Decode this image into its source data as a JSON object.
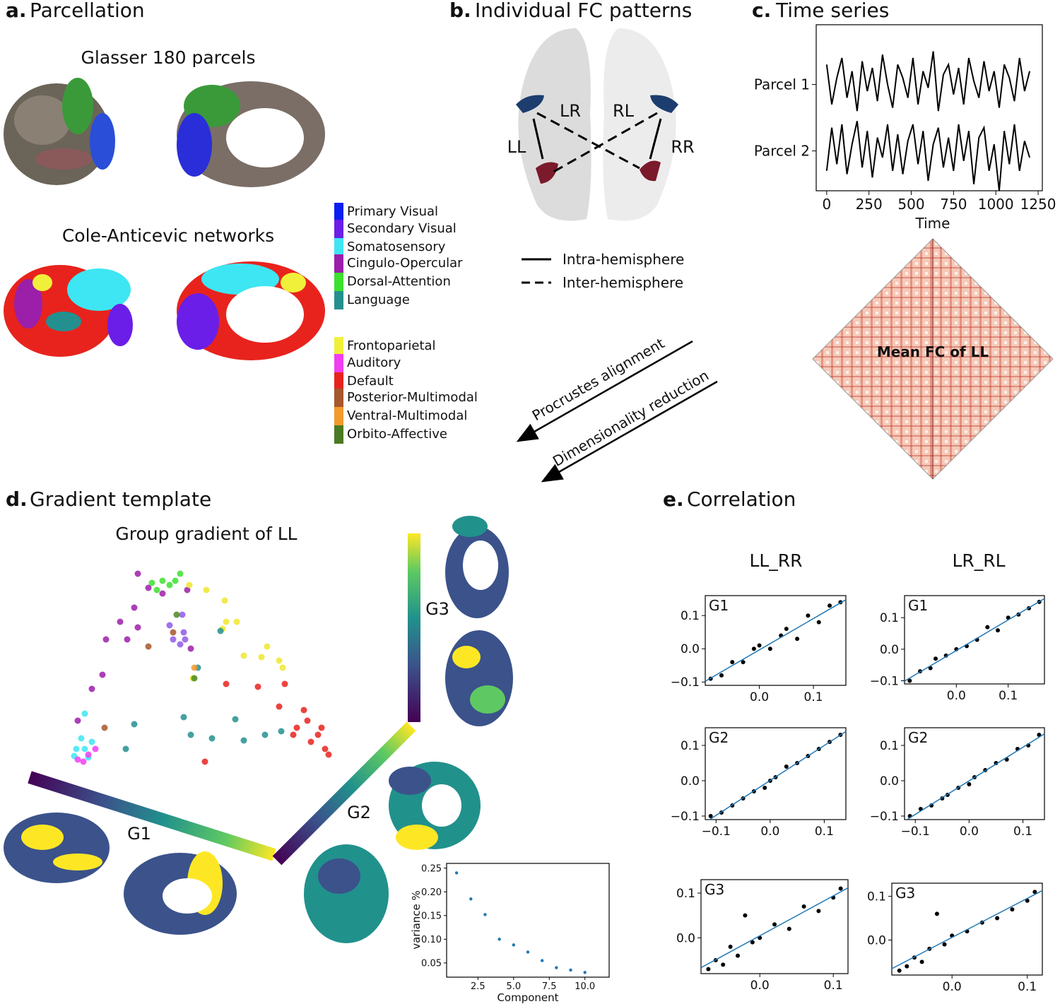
{
  "panel_a": {
    "label": "a.",
    "title": "Parcellation",
    "subtitle_1": "Glasser 180 parcels",
    "subtitle_2": "Cole-Anticevic networks",
    "legend": [
      {
        "name": "Primary Visual",
        "color": "#0a1ef0"
      },
      {
        "name": "Secondary Visual",
        "color": "#6a1ee8"
      },
      {
        "name": "Somatosensory",
        "color": "#3de6f2"
      },
      {
        "name": "Cingulo-Opercular",
        "color": "#9b1fa9"
      },
      {
        "name": "Dorsal-Attention",
        "color": "#3ce02e"
      },
      {
        "name": "Language",
        "color": "#23908f"
      },
      {
        "name": "Frontoparietal",
        "color": "#f0f03a"
      },
      {
        "name": "Auditory",
        "color": "#f03ef0"
      },
      {
        "name": "Default",
        "color": "#e8231d"
      },
      {
        "name": "Posterior-Multimodal",
        "color": "#a6572b"
      },
      {
        "name": "Ventral-Multimodal",
        "color": "#f39a2c"
      },
      {
        "name": "Orbito-Affective",
        "color": "#4a7a22"
      }
    ]
  },
  "panel_b": {
    "label": "b.",
    "title": "Individual FC patterns",
    "pairs": [
      "LR",
      "RL",
      "LL",
      "RR"
    ],
    "legend": [
      "Intra-hemisphere",
      "Inter-hemisphere"
    ]
  },
  "panel_c": {
    "label": "c.",
    "title": "Time series",
    "chart_data": {
      "type": "line",
      "xlabel": "Time",
      "x": [
        0,
        30,
        60,
        90,
        120,
        150,
        180,
        210,
        240,
        270,
        300,
        330,
        360,
        390,
        420,
        450,
        480,
        510,
        540,
        570,
        600,
        630,
        660,
        690,
        720,
        750,
        780,
        810,
        840,
        870,
        900,
        930,
        960,
        990,
        1020,
        1050,
        1080,
        1110,
        1140,
        1170,
        1200
      ],
      "series": [
        {
          "color": "#000000",
          "values": [
            1.3,
            0.7,
            1.1,
            1.4,
            0.8,
            1.2,
            0.6,
            1.35,
            0.9,
            1.25,
            0.75,
            1.45,
            1.0,
            0.65,
            1.3,
            1.1,
            0.8,
            1.4,
            0.7,
            1.2,
            0.95,
            1.5,
            0.6,
            1.15,
            1.3,
            0.85,
            1.25,
            0.7,
            1.4,
            1.05,
            0.8,
            1.35,
            0.9,
            1.2,
            0.65,
            1.3,
            1.1,
            0.75,
            1.4,
            0.9,
            1.2
          ]
        },
        {
          "color": "#000000",
          "values": [
            -0.3,
            0.35,
            -0.2,
            0.4,
            -0.35,
            0.1,
            0.45,
            -0.25,
            0.3,
            -0.4,
            0.2,
            -0.1,
            0.4,
            -0.3,
            0.25,
            -0.35,
            0.15,
            0.4,
            -0.2,
            0.3,
            -0.45,
            0.1,
            0.35,
            -0.25,
            0.2,
            -0.3,
            0.4,
            -0.15,
            0.3,
            -0.5,
            0.2,
            0.35,
            -0.3,
            0.1,
            -0.6,
            0.3,
            -0.2,
            0.4,
            -0.3,
            0.15,
            -0.1
          ]
        }
      ],
      "xlim": [
        -62,
        1275
      ],
      "ylim": [
        -0.6,
        1.9
      ],
      "xticks": [
        0,
        250,
        500,
        750,
        1000,
        1250
      ],
      "yticks": [
        {
          "value": 1,
          "label": "Parcel 1"
        },
        {
          "value": 0,
          "label": "Parcel 2"
        }
      ]
    },
    "matrix_label": "Mean FC of LL"
  },
  "arrows": [
    "Procrustes alignment",
    "Dimensionality reduction"
  ],
  "panel_d": {
    "label": "d.",
    "title": "Gradient template",
    "subtitle": "Group gradient of LL",
    "axes": [
      "G1",
      "G2",
      "G3"
    ],
    "scatter": {
      "type": "scatter",
      "xlim": [
        0,
        400
      ],
      "ylim": [
        0,
        300
      ],
      "series": [
        {
          "color": "#3ce02e",
          "x": [
            125,
            140,
            150,
            165,
            158,
            132
          ],
          "values": [
            265,
            268,
            262,
            278,
            268,
            255
          ]
        },
        {
          "color": "#9b1fa9",
          "x": [
            105,
            120,
            140,
            100,
            80,
            90,
            60,
            55,
            40,
            20,
            105,
            175,
            180
          ],
          "values": [
            278,
            258,
            250,
            230,
            210,
            185,
            185,
            135,
            115,
            70,
            202,
            255,
            172
          ]
        },
        {
          "color": "#8f5ae8",
          "x": [
            168,
            170,
            165,
            155,
            150,
            172
          ],
          "values": [
            220,
            195,
            178,
            185,
            205,
            185
          ]
        },
        {
          "color": "#f0e62e",
          "x": [
            178,
            202,
            228,
            230,
            245,
            288,
            305,
            310,
            280,
            255,
            183,
            225
          ],
          "values": [
            262,
            255,
            240,
            210,
            210,
            175,
            155,
            145,
            160,
            162,
            130,
            200
          ]
        },
        {
          "color": "#23908f",
          "x": [
            222,
            190,
            180,
            210,
            255,
            285,
            308,
            100,
            88,
            170,
            243
          ],
          "values": [
            197,
            145,
            50,
            45,
            42,
            50,
            55,
            65,
            30,
            75,
            72
          ]
        },
        {
          "color": "#e8231d",
          "x": [
            230,
            275,
            313,
            305,
            340,
            330,
            350,
            370,
            375,
            360,
            325,
            200,
            345,
            365
          ],
          "values": [
            122,
            118,
            122,
            90,
            85,
            60,
            40,
            30,
            22,
            50,
            50,
            12,
            70,
            60
          ]
        },
        {
          "color": "#3de6f2",
          "x": [
            15,
            30,
            25,
            40,
            18,
            35,
            30
          ],
          "values": [
            20,
            30,
            45,
            40,
            30,
            18,
            80
          ]
        },
        {
          "color": "#f03ef0",
          "x": [
            20,
            35,
            45,
            28
          ],
          "values": [
            15,
            22,
            30,
            12
          ]
        },
        {
          "color": "#a6572b",
          "x": [
            120,
            58,
            155
          ],
          "values": [
            175,
            60,
            195
          ]
        },
        {
          "color": "#4a8a22",
          "x": [
            185,
            160
          ],
          "values": [
            130,
            220
          ]
        },
        {
          "color": "#f39a2c",
          "x": [
            185
          ],
          "values": [
            145
          ]
        }
      ]
    },
    "variance": {
      "type": "scatter",
      "xlabel": "Component",
      "ylabel": "variance %",
      "color": "#1f77b4",
      "x": [
        1,
        2,
        3,
        4,
        5,
        6,
        7,
        8,
        9,
        10
      ],
      "values": [
        0.24,
        0.185,
        0.152,
        0.1,
        0.088,
        0.073,
        0.055,
        0.04,
        0.035,
        0.03
      ],
      "xlim": [
        0.3,
        11.7
      ],
      "ylim": [
        0.02,
        0.26
      ],
      "xticks": [
        2.5,
        {
          "value": 5,
          "label": "5.0"
        },
        7.5,
        {
          "value": 10,
          "label": "10.0"
        }
      ],
      "yticks": [
        0.05,
        {
          "value": 0.1,
          "label": "0.10"
        },
        {
          "value": 0.15,
          "label": "0.15"
        },
        {
          "value": 0.2,
          "label": "0.20"
        },
        0.25
      ]
    }
  },
  "panel_e": {
    "label": "e.",
    "title": "Correlation",
    "columns": [
      "LL_RR",
      "LR_RL"
    ],
    "chart_data": [
      {
        "type": "scatter",
        "title": "G1",
        "xlim": [
          -0.1,
          0.16
        ],
        "ylim": [
          -0.11,
          0.16
        ],
        "xticks": [
          {
            "value": 0,
            "label": "0.0"
          },
          0.1
        ],
        "yticks": [
          {
            "value": -0.1,
            "label": "−0.1"
          },
          {
            "value": 0,
            "label": "0.0"
          },
          0.1
        ],
        "x": [
          -0.09,
          -0.07,
          -0.05,
          -0.03,
          -0.01,
          0.0,
          0.02,
          0.04,
          0.05,
          0.07,
          0.09,
          0.11,
          0.13,
          0.15
        ],
        "values": [
          -0.09,
          -0.08,
          -0.04,
          -0.04,
          0.0,
          0.01,
          0.0,
          0.04,
          0.06,
          0.03,
          0.1,
          0.08,
          0.13,
          0.14
        ]
      },
      {
        "type": "scatter",
        "title": "G1",
        "xlim": [
          -0.1,
          0.17
        ],
        "ylim": [
          -0.11,
          0.17
        ],
        "xticks": [
          {
            "value": 0,
            "label": "0.0"
          },
          0.1
        ],
        "yticks": [
          {
            "value": -0.1,
            "label": "−0.1"
          },
          {
            "value": 0,
            "label": "0.0"
          },
          0.1
        ],
        "x": [
          -0.09,
          -0.07,
          -0.05,
          -0.04,
          -0.02,
          0.0,
          0.02,
          0.04,
          0.06,
          0.08,
          0.1,
          0.12,
          0.14,
          0.16
        ],
        "values": [
          -0.1,
          -0.07,
          -0.06,
          -0.03,
          -0.02,
          0.0,
          0.01,
          0.03,
          0.07,
          0.06,
          0.1,
          0.11,
          0.13,
          0.15
        ]
      },
      {
        "type": "scatter",
        "title": "G2",
        "xlim": [
          -0.12,
          0.14
        ],
        "ylim": [
          -0.11,
          0.15
        ],
        "xticks": [
          {
            "value": -0.1,
            "label": "−0.1"
          },
          {
            "value": 0,
            "label": "0.0"
          },
          0.1
        ],
        "yticks": [
          {
            "value": -0.1,
            "label": "−0.1"
          },
          {
            "value": 0,
            "label": "0.0"
          },
          0.1
        ],
        "x": [
          -0.11,
          -0.09,
          -0.07,
          -0.05,
          -0.03,
          -0.01,
          0.0,
          0.01,
          0.03,
          0.05,
          0.07,
          0.09,
          0.11,
          0.13
        ],
        "values": [
          -0.1,
          -0.09,
          -0.07,
          -0.05,
          -0.03,
          -0.02,
          0.0,
          0.01,
          0.04,
          0.05,
          0.07,
          0.09,
          0.11,
          0.13
        ]
      },
      {
        "type": "scatter",
        "title": "G2",
        "xlim": [
          -0.12,
          0.14
        ],
        "ylim": [
          -0.11,
          0.15
        ],
        "xticks": [
          {
            "value": -0.1,
            "label": "−0.1"
          },
          {
            "value": 0,
            "label": "0.0"
          },
          0.1
        ],
        "yticks": [
          {
            "value": -0.1,
            "label": "−0.1"
          },
          {
            "value": 0,
            "label": "0.0"
          },
          0.1
        ],
        "x": [
          -0.11,
          -0.09,
          -0.07,
          -0.05,
          -0.04,
          -0.02,
          0.0,
          0.01,
          0.03,
          0.05,
          0.07,
          0.09,
          0.11,
          0.13
        ],
        "values": [
          -0.1,
          -0.08,
          -0.07,
          -0.05,
          -0.04,
          -0.02,
          -0.01,
          0.01,
          0.03,
          0.05,
          0.06,
          0.09,
          0.1,
          0.13
        ]
      },
      {
        "type": "scatter",
        "title": "G3",
        "xlim": [
          -0.08,
          0.12
        ],
        "ylim": [
          -0.08,
          0.13
        ],
        "xticks": [
          {
            "value": 0,
            "label": "0.0"
          },
          0.1
        ],
        "yticks": [
          {
            "value": 0,
            "label": "0.0"
          },
          0.1
        ],
        "x": [
          -0.07,
          -0.06,
          -0.05,
          -0.04,
          -0.03,
          -0.02,
          -0.01,
          0.0,
          0.02,
          0.04,
          0.06,
          0.08,
          0.1,
          0.11
        ],
        "values": [
          -0.07,
          -0.05,
          -0.06,
          -0.02,
          -0.04,
          0.05,
          -0.01,
          0.0,
          0.03,
          0.02,
          0.07,
          0.06,
          0.09,
          0.11
        ]
      },
      {
        "type": "scatter",
        "title": "G3",
        "xlim": [
          -0.08,
          0.12
        ],
        "ylim": [
          -0.08,
          0.13
        ],
        "xticks": [
          {
            "value": 0,
            "label": "0.0"
          },
          0.1
        ],
        "yticks": [
          {
            "value": 0,
            "label": "0.0"
          },
          0.1
        ],
        "x": [
          -0.07,
          -0.06,
          -0.05,
          -0.04,
          -0.03,
          -0.02,
          -0.01,
          0.0,
          0.02,
          0.04,
          0.06,
          0.08,
          0.1,
          0.11
        ],
        "values": [
          -0.07,
          -0.06,
          -0.04,
          -0.05,
          -0.02,
          0.06,
          -0.01,
          0.01,
          0.02,
          0.04,
          0.05,
          0.07,
          0.09,
          0.11
        ]
      }
    ]
  }
}
